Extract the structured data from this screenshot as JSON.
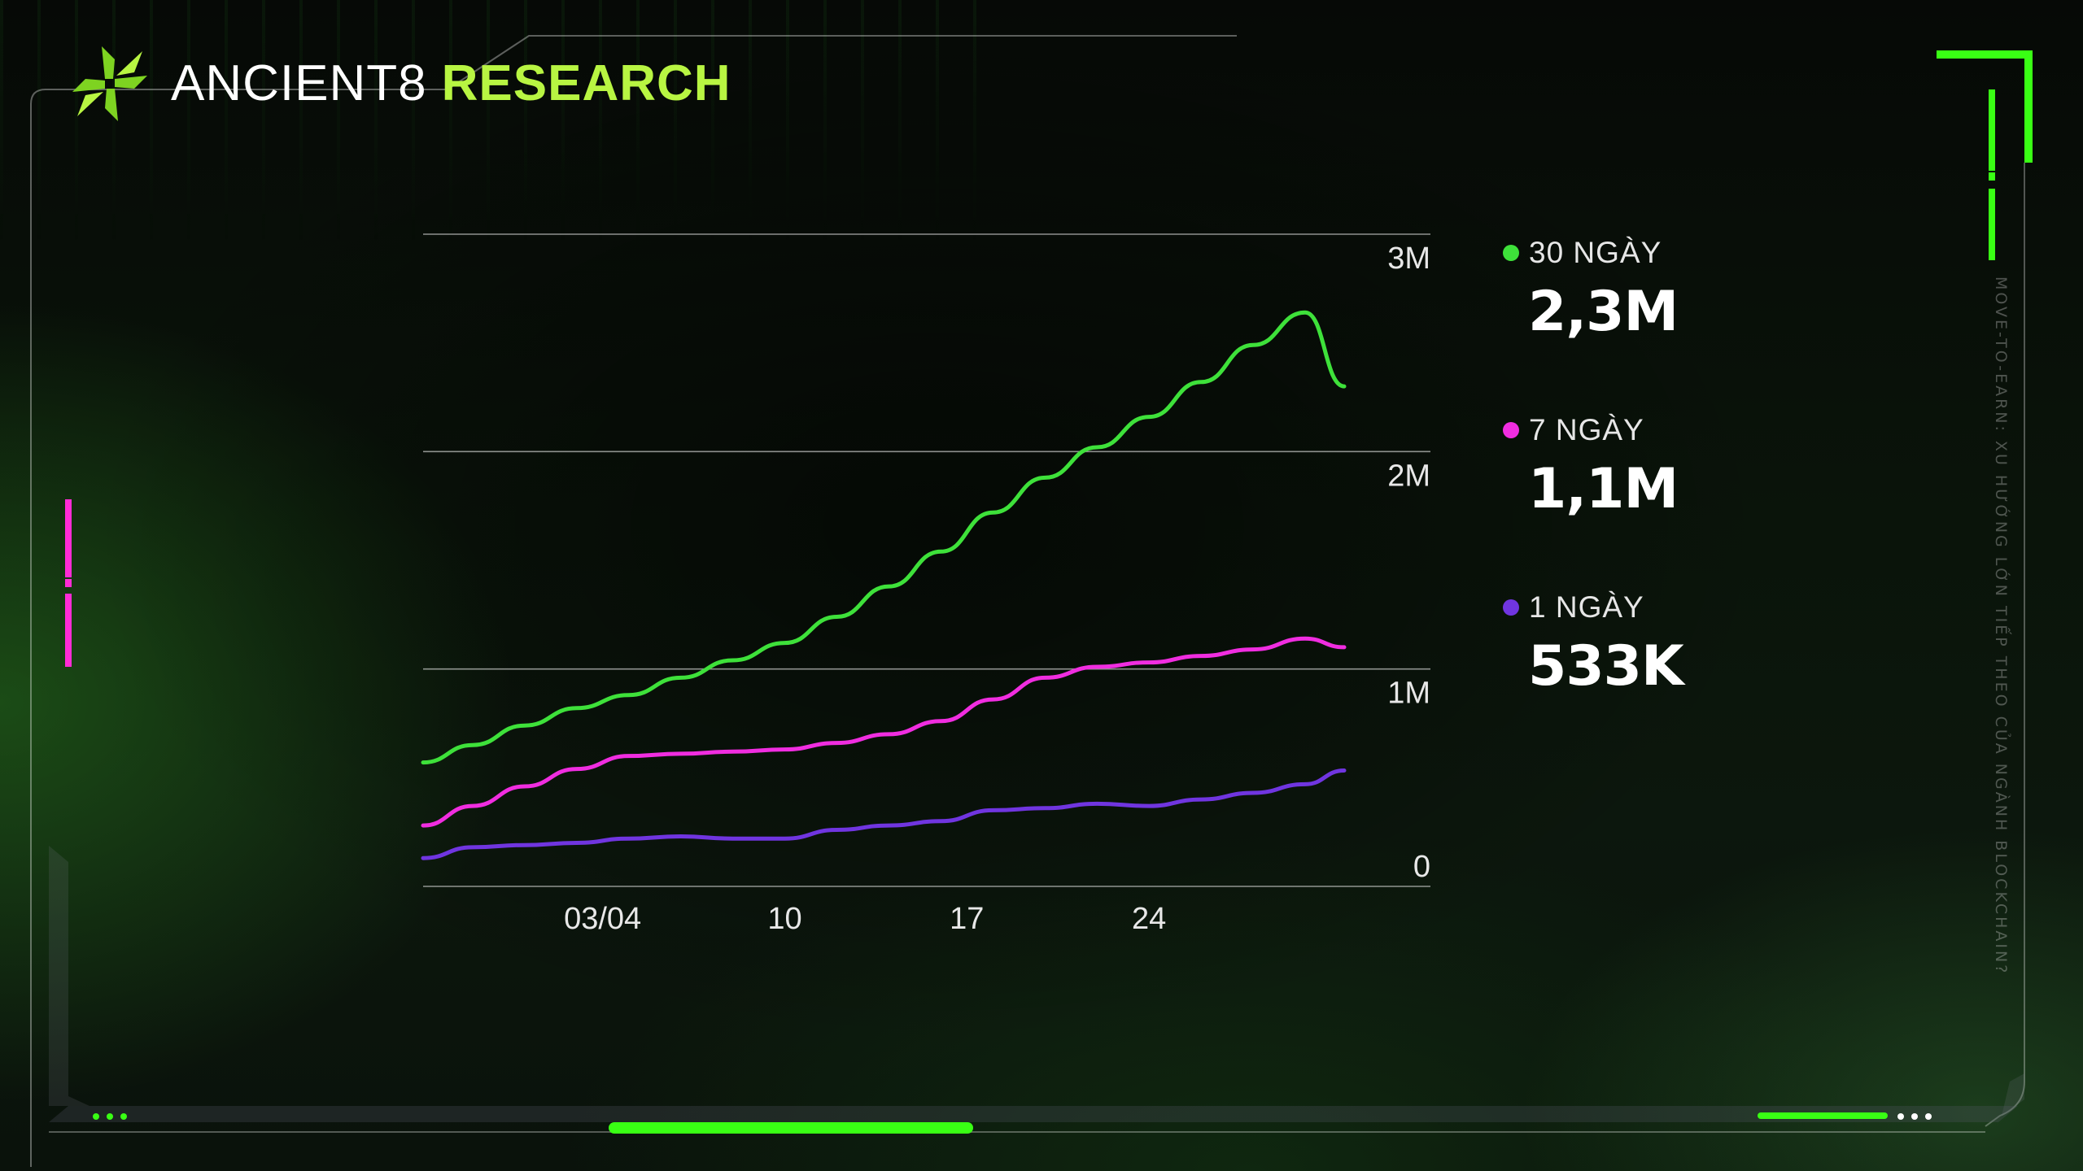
{
  "brand": {
    "logo_icon": "ancient8-star-logo-icon",
    "name": "ANCIENT8",
    "accent": "RESEARCH",
    "accent_color": "#b8f542"
  },
  "side_caption": "MOVE-TO-EARN: XU HƯỚNG LỚN TIẾP THEO CỦA NGÀNH BLOCKCHAIN?",
  "colors": {
    "green": "#3ee13a",
    "magenta": "#f02de0",
    "purple": "#7035e0",
    "frame": "#ffffff",
    "neon_green": "#39ff14",
    "neon_pink": "#ff2bd6"
  },
  "legend": [
    {
      "name": "30 NGÀY",
      "value": "2,3M",
      "color": "#3ee13a"
    },
    {
      "name": "7 NGÀY",
      "value": "1,1M",
      "color": "#f02de0"
    },
    {
      "name": "1 NGÀY",
      "value": "533K",
      "color": "#7035e0"
    }
  ],
  "chart_data": {
    "type": "line",
    "title": "",
    "xlabel": "",
    "ylabel": "",
    "x_tick_labels": [
      "03/04",
      "10",
      "17",
      "24"
    ],
    "x_tick_days": [
      3,
      10,
      17,
      24
    ],
    "y_tick_labels": [
      "0",
      "1M",
      "2M",
      "3M"
    ],
    "y_ticks": [
      0,
      1000000,
      2000000,
      3000000
    ],
    "xlim": [
      -3.9,
      31.5
    ],
    "ylim": [
      0,
      3000000
    ],
    "grid": true,
    "legend_position": "right",
    "series": [
      {
        "name": "30 NGÀY",
        "color": "#3ee13a",
        "x": [
          -3.9,
          -2,
          0,
          2,
          4,
          6,
          8,
          10,
          12,
          14,
          16,
          18,
          20,
          22,
          24,
          26,
          28,
          30,
          31.5
        ],
        "y": [
          570000,
          650000,
          740000,
          820000,
          880000,
          960000,
          1040000,
          1120000,
          1240000,
          1380000,
          1540000,
          1720000,
          1880000,
          2020000,
          2160000,
          2320000,
          2490000,
          2640000,
          2300000
        ]
      },
      {
        "name": "7 NGÀY",
        "color": "#f02de0",
        "x": [
          -3.9,
          -2,
          0,
          2,
          4,
          6,
          8,
          10,
          12,
          14,
          16,
          18,
          20,
          22,
          24,
          26,
          28,
          30,
          31.5
        ],
        "y": [
          280000,
          370000,
          460000,
          540000,
          600000,
          610000,
          620000,
          630000,
          660000,
          700000,
          760000,
          860000,
          960000,
          1010000,
          1030000,
          1060000,
          1090000,
          1140000,
          1100000
        ]
      },
      {
        "name": "1 NGÀY",
        "color": "#7035e0",
        "x": [
          -3.9,
          -2,
          0,
          2,
          4,
          6,
          8,
          10,
          12,
          14,
          16,
          18,
          20,
          22,
          24,
          26,
          28,
          30,
          31.5
        ],
        "y": [
          130000,
          180000,
          190000,
          200000,
          220000,
          230000,
          220000,
          220000,
          260000,
          280000,
          300000,
          350000,
          360000,
          380000,
          370000,
          400000,
          430000,
          470000,
          533000
        ]
      }
    ]
  }
}
